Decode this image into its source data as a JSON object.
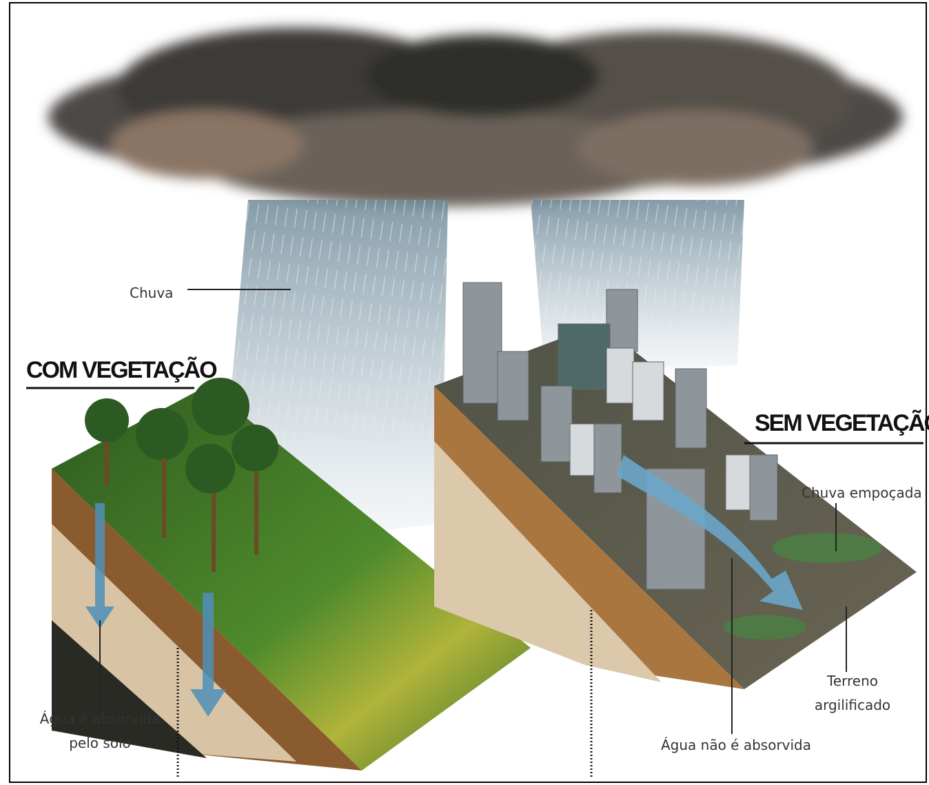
{
  "labels": {
    "rain": "Chuva",
    "with_vegetation": "COM VEGETAÇÃO",
    "without_vegetation": "SEM VEGETAÇÃO",
    "pooled_rain": "Chuva empoçada",
    "clay_terrain": [
      "Terreno",
      "argilificado"
    ],
    "absorbed": [
      "Água é absorvida",
      "pelo solo"
    ],
    "not_absorbed": "Água não é absorvida"
  }
}
